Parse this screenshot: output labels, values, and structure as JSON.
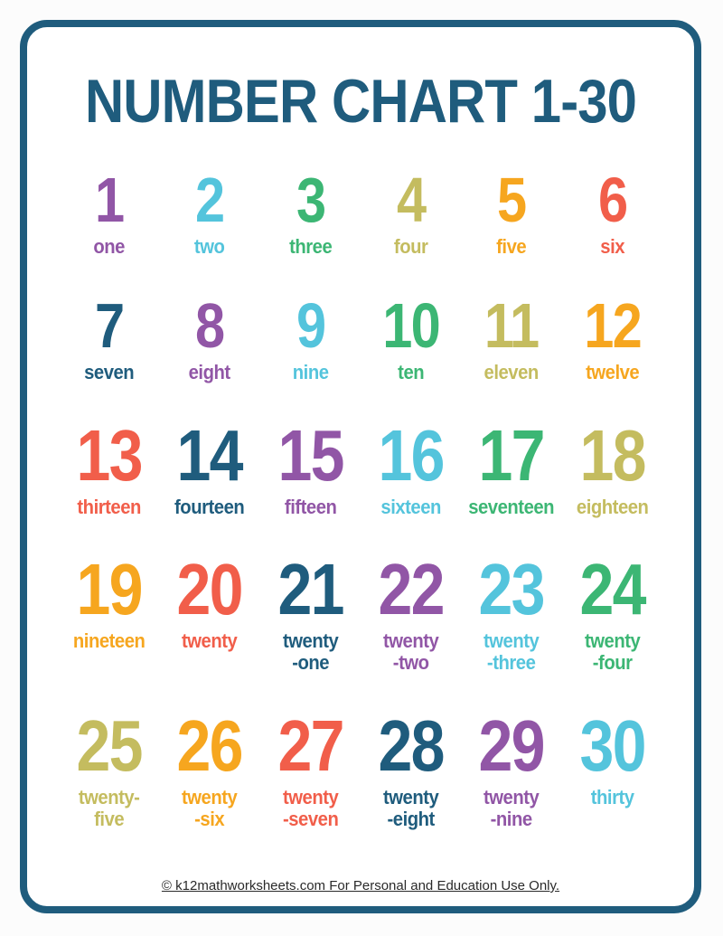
{
  "page": {
    "title": "NUMBER CHART 1-30",
    "footer": "© k12mathworksheets.com For Personal and Education Use Only."
  },
  "palette": {
    "purple": "#9156a6",
    "cyan": "#54c4dc",
    "green": "#3cb674",
    "olive": "#c4bc5f",
    "gold": "#f6a61f",
    "red": "#f15e4a",
    "teal": "#1f5c7d"
  },
  "border_color": "#1f5c7d",
  "title_color": "#1f5c7d",
  "grid": {
    "columns": 6,
    "cells": [
      {
        "number": "1",
        "word": "one",
        "color": "purple",
        "size": "s"
      },
      {
        "number": "2",
        "word": "two",
        "color": "cyan",
        "size": "s"
      },
      {
        "number": "3",
        "word": "three",
        "color": "green",
        "size": "s"
      },
      {
        "number": "4",
        "word": "four",
        "color": "olive",
        "size": "s"
      },
      {
        "number": "5",
        "word": "five",
        "color": "gold",
        "size": "s"
      },
      {
        "number": "6",
        "word": "six",
        "color": "red",
        "size": "s"
      },
      {
        "number": "7",
        "word": "seven",
        "color": "teal",
        "size": "s"
      },
      {
        "number": "8",
        "word": "eight",
        "color": "purple",
        "size": "s"
      },
      {
        "number": "9",
        "word": "nine",
        "color": "cyan",
        "size": "s"
      },
      {
        "number": "10",
        "word": "ten",
        "color": "green",
        "size": "s"
      },
      {
        "number": "11",
        "word": "eleven",
        "color": "olive",
        "size": "s"
      },
      {
        "number": "12",
        "word": "twelve",
        "color": "gold",
        "size": "s"
      },
      {
        "number": "13",
        "word": "thirteen",
        "color": "red",
        "size": "l"
      },
      {
        "number": "14",
        "word": "fourteen",
        "color": "teal",
        "size": "l"
      },
      {
        "number": "15",
        "word": "fifteen",
        "color": "purple",
        "size": "l"
      },
      {
        "number": "16",
        "word": "sixteen",
        "color": "cyan",
        "size": "l"
      },
      {
        "number": "17",
        "word": "seventeen",
        "color": "green",
        "size": "l"
      },
      {
        "number": "18",
        "word": "eighteen",
        "color": "olive",
        "size": "l"
      },
      {
        "number": "19",
        "word": "nineteen",
        "color": "gold",
        "size": "l"
      },
      {
        "number": "20",
        "word": "twenty",
        "color": "red",
        "size": "l"
      },
      {
        "number": "21",
        "word": "twenty\n-one",
        "color": "teal",
        "size": "l"
      },
      {
        "number": "22",
        "word": "twenty\n-two",
        "color": "purple",
        "size": "l"
      },
      {
        "number": "23",
        "word": "twenty\n-three",
        "color": "cyan",
        "size": "l"
      },
      {
        "number": "24",
        "word": "twenty\n-four",
        "color": "green",
        "size": "l"
      },
      {
        "number": "25",
        "word": "twenty-\nfive",
        "color": "olive",
        "size": "l"
      },
      {
        "number": "26",
        "word": "twenty\n-six",
        "color": "gold",
        "size": "l"
      },
      {
        "number": "27",
        "word": "twenty\n-seven",
        "color": "red",
        "size": "l"
      },
      {
        "number": "28",
        "word": "twenty\n-eight",
        "color": "teal",
        "size": "l"
      },
      {
        "number": "29",
        "word": "twenty\n-nine",
        "color": "purple",
        "size": "l"
      },
      {
        "number": "30",
        "word": "thirty",
        "color": "cyan",
        "size": "l"
      }
    ]
  }
}
